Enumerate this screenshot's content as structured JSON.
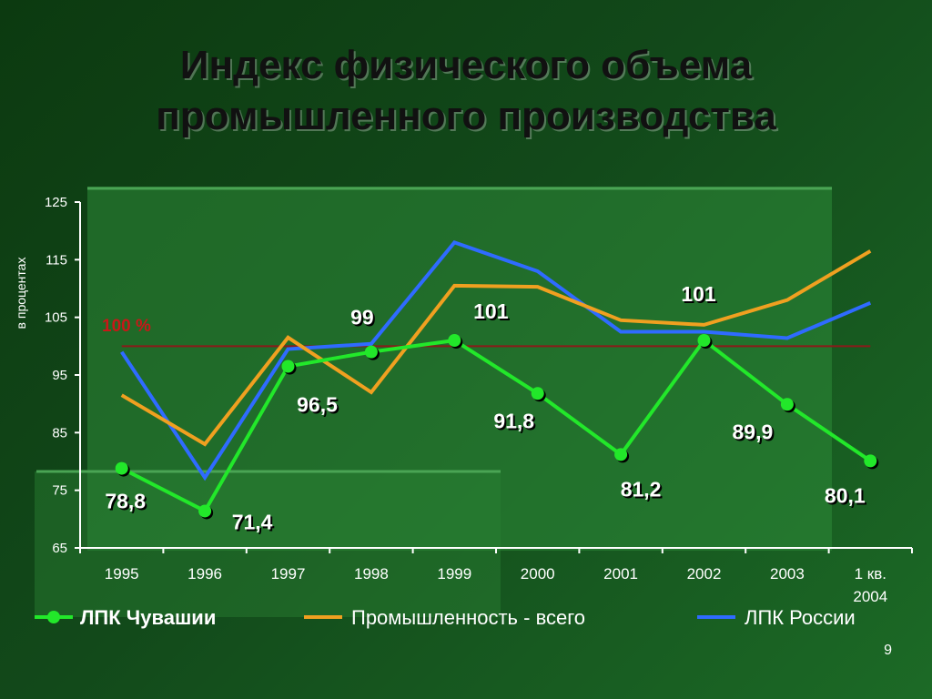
{
  "title": {
    "line1": "Индекс физического объема",
    "line2": "промышленного производства"
  },
  "page_number": "9",
  "chart_data": {
    "type": "line",
    "ylabel": "в процентах",
    "ylim": [
      65,
      125
    ],
    "yticks": [
      65,
      75,
      85,
      95,
      105,
      115,
      125
    ],
    "categories": [
      "1995",
      "1996",
      "1997",
      "1998",
      "1999",
      "2000",
      "2001",
      "2002",
      "2003",
      "1 кв. 2004"
    ],
    "reference_line": {
      "value": 100,
      "label": "100 %",
      "color": "#8b1a1a"
    },
    "series": [
      {
        "name": "ЛПК Чувашии",
        "color": "#22e82a",
        "markers": true,
        "values": [
          78.8,
          71.4,
          96.5,
          99,
          101,
          91.8,
          81.2,
          101,
          89.9,
          80.1
        ],
        "labels": [
          "78,8",
          "71,4",
          "96,5",
          "99",
          "101",
          "91,8",
          "81,2",
          "101",
          "89,9",
          "80,1"
        ]
      },
      {
        "name": "Промышленность - всего",
        "color": "#f0a020",
        "markers": false,
        "values": [
          91.5,
          83,
          101.5,
          92,
          110.5,
          110.3,
          104.5,
          103.7,
          108,
          116.5
        ]
      },
      {
        "name": "ЛПК России",
        "color": "#2f6bff",
        "markers": false,
        "values": [
          99,
          77.2,
          99.5,
          100.4,
          118,
          113,
          102.5,
          102.5,
          101.4,
          107.5
        ]
      }
    ],
    "grid": false,
    "legend_position": "bottom"
  }
}
